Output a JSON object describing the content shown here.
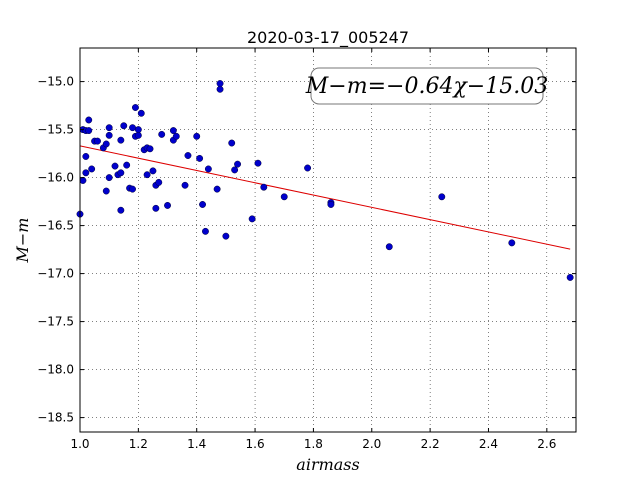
{
  "chart_data": {
    "type": "scatter",
    "title": "2020-03-17_005247",
    "xlabel": "airmass",
    "ylabel": "M−m",
    "xlim": [
      1.0,
      2.7
    ],
    "ylim": [
      -18.65,
      -14.65
    ],
    "y_inverted": true,
    "grid": true,
    "x_ticks": [
      1.0,
      1.2,
      1.4,
      1.6,
      1.8,
      2.0,
      2.2,
      2.4,
      2.6
    ],
    "x_tick_labels": [
      "1.0",
      "1.2",
      "1.4",
      "1.6",
      "1.8",
      "2.0",
      "2.2",
      "2.4",
      "2.6"
    ],
    "y_ticks": [
      -15.0,
      -15.5,
      -16.0,
      -16.5,
      -17.0,
      -17.5,
      -18.0,
      -18.5
    ],
    "y_tick_labels": [
      "−15.0",
      "−15.5",
      "−16.0",
      "−16.5",
      "−17.0",
      "−17.5",
      "−18.0",
      "−18.5"
    ],
    "annotation": "M−m=−0.64χ−15.03",
    "fit": {
      "slope": -0.64,
      "intercept": -15.03,
      "x_range": [
        1.0,
        2.68
      ],
      "color": "#dd0000"
    },
    "series": [
      {
        "marker_color": "#0000cc",
        "points": [
          [
            1.0,
            -16.38
          ],
          [
            1.01,
            -16.03
          ],
          [
            1.01,
            -15.5
          ],
          [
            1.02,
            -15.78
          ],
          [
            1.02,
            -15.95
          ],
          [
            1.02,
            -15.51
          ],
          [
            1.03,
            -15.4
          ],
          [
            1.03,
            -15.51
          ],
          [
            1.04,
            -15.91
          ],
          [
            1.05,
            -15.62
          ],
          [
            1.06,
            -15.62
          ],
          [
            1.08,
            -15.69
          ],
          [
            1.09,
            -15.65
          ],
          [
            1.09,
            -16.14
          ],
          [
            1.1,
            -15.56
          ],
          [
            1.1,
            -15.48
          ],
          [
            1.1,
            -16.0
          ],
          [
            1.12,
            -15.88
          ],
          [
            1.13,
            -15.97
          ],
          [
            1.14,
            -15.95
          ],
          [
            1.14,
            -16.34
          ],
          [
            1.14,
            -15.61
          ],
          [
            1.15,
            -15.46
          ],
          [
            1.16,
            -15.87
          ],
          [
            1.17,
            -16.11
          ],
          [
            1.18,
            -16.12
          ],
          [
            1.18,
            -15.48
          ],
          [
            1.19,
            -15.27
          ],
          [
            1.19,
            -15.57
          ],
          [
            1.2,
            -15.5
          ],
          [
            1.2,
            -15.56
          ],
          [
            1.21,
            -15.33
          ],
          [
            1.22,
            -15.71
          ],
          [
            1.23,
            -15.69
          ],
          [
            1.23,
            -15.97
          ],
          [
            1.24,
            -15.7
          ],
          [
            1.25,
            -15.93
          ],
          [
            1.26,
            -16.08
          ],
          [
            1.26,
            -16.32
          ],
          [
            1.27,
            -16.05
          ],
          [
            1.28,
            -15.55
          ],
          [
            1.3,
            -16.29
          ],
          [
            1.32,
            -15.61
          ],
          [
            1.32,
            -15.51
          ],
          [
            1.33,
            -15.57
          ],
          [
            1.36,
            -16.08
          ],
          [
            1.37,
            -15.77
          ],
          [
            1.4,
            -15.57
          ],
          [
            1.41,
            -15.8
          ],
          [
            1.42,
            -16.28
          ],
          [
            1.43,
            -16.56
          ],
          [
            1.44,
            -15.91
          ],
          [
            1.47,
            -16.12
          ],
          [
            1.48,
            -15.02
          ],
          [
            1.48,
            -15.08
          ],
          [
            1.5,
            -16.61
          ],
          [
            1.52,
            -15.64
          ],
          [
            1.53,
            -15.92
          ],
          [
            1.54,
            -15.86
          ],
          [
            1.59,
            -16.43
          ],
          [
            1.61,
            -15.85
          ],
          [
            1.63,
            -16.1
          ],
          [
            1.7,
            -16.2
          ],
          [
            1.78,
            -15.9
          ],
          [
            1.86,
            -16.26
          ],
          [
            1.86,
            -16.28
          ],
          [
            2.06,
            -16.72
          ],
          [
            2.24,
            -16.2
          ],
          [
            2.48,
            -16.68
          ],
          [
            2.68,
            -17.04
          ]
        ]
      }
    ]
  }
}
